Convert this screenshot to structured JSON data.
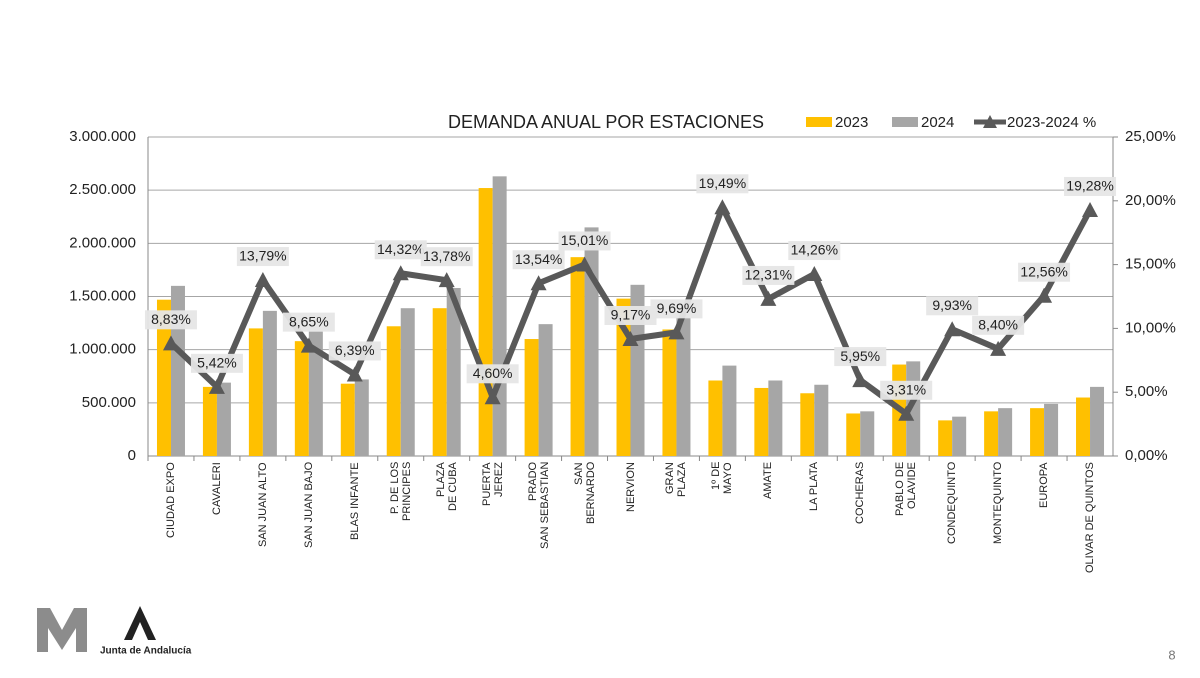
{
  "chart_data": {
    "type": "bar-line",
    "title": "DEMANDA ANUAL POR ESTACIONES",
    "categories": [
      "CIUDAD EXPO",
      "CAVALERI",
      "SAN JUAN ALTO",
      "SAN JUAN BAJO",
      "BLAS INFANTE",
      "P. DE LOS\nPRINCIPES",
      "PLAZA\nDE CUBA",
      "PUERTA\nJEREZ",
      "PRADO\nSAN SEBASTIAN",
      "SAN\nBERNARDO",
      "NERVION",
      "GRAN\nPLAZA",
      "1º DE\nMAYO",
      "AMATE",
      "LA PLATA",
      "COCHERAS",
      "PABLO DE\nOLAVIDE",
      "CONDEQUINTO",
      "MONTEQUINTO",
      "EUROPA",
      "OLIVAR DE QUINTOS"
    ],
    "series": [
      {
        "name": "2023",
        "type": "bar",
        "color": "#ffc000",
        "values": [
          1470000,
          650000,
          1200000,
          1080000,
          680000,
          1220000,
          1390000,
          2520000,
          1100000,
          1870000,
          1480000,
          1190000,
          710000,
          640000,
          590000,
          400000,
          860000,
          335000,
          420000,
          450000,
          550000
        ]
      },
      {
        "name": "2024",
        "type": "bar",
        "color": "#a6a6a6",
        "values": [
          1600000,
          690000,
          1365000,
          1170000,
          720000,
          1390000,
          1580000,
          2630000,
          1240000,
          2150000,
          1610000,
          1300000,
          850000,
          710000,
          670000,
          420000,
          890000,
          370000,
          450000,
          490000,
          650000
        ]
      },
      {
        "name": "2023-2024 %",
        "type": "line",
        "axis": "y2",
        "color": "#595959",
        "values": [
          8.83,
          5.42,
          13.79,
          8.65,
          6.39,
          14.32,
          13.78,
          4.6,
          13.54,
          15.01,
          9.17,
          9.69,
          19.49,
          12.31,
          14.26,
          5.95,
          3.31,
          9.93,
          8.4,
          12.56,
          19.28
        ],
        "value_labels": [
          "8,83%",
          "5,42%",
          "13,79%",
          "8,65%",
          "6,39%",
          "14,32%",
          "13,78%",
          "4,60%",
          "13,54%",
          "15,01%",
          "9,17%",
          "9,69%",
          "19,49%",
          "12,31%",
          "14,26%",
          "5,95%",
          "3,31%",
          "9,93%",
          "8,40%",
          "12,56%",
          "19,28%"
        ]
      }
    ],
    "ylim": [
      0,
      3000000
    ],
    "yticks": [
      0,
      {
        "value": 500000,
        "label": "500.000"
      },
      {
        "value": 1000000,
        "label": "1.000.000"
      },
      {
        "value": 1500000,
        "label": "1.500.000"
      },
      {
        "value": 2000000,
        "label": "2.000.000"
      },
      {
        "value": 2500000,
        "label": "2.500.000"
      },
      {
        "value": 3000000,
        "label": "3.000.000"
      }
    ],
    "y2lim": [
      0,
      25
    ],
    "y2ticks": [
      {
        "value": 0,
        "label": "0,00%"
      },
      {
        "value": 5,
        "label": "5,00%"
      },
      {
        "value": 10,
        "label": "10,00%"
      },
      {
        "value": 15,
        "label": "15,00%"
      },
      {
        "value": 20,
        "label": "20,00%"
      },
      {
        "value": 25,
        "label": "25,00%"
      }
    ],
    "grid": true,
    "legend": "top-right"
  },
  "footer": {
    "logo_text": "Junta de Andalucía",
    "page_number": "8"
  }
}
